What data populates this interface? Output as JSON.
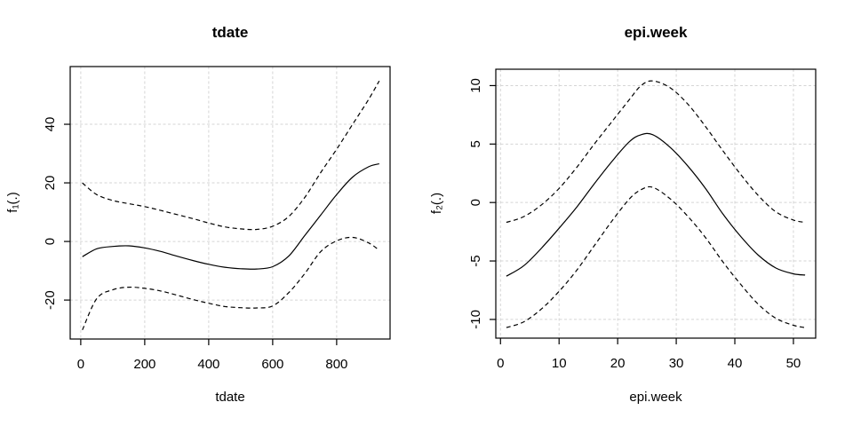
{
  "window": {
    "background": "#ffffff"
  },
  "colors": {
    "curve": "#000000",
    "grid": "#d5d5d5",
    "text": "#000000",
    "background": "#ffffff"
  },
  "chart_data": [
    {
      "panel": "left",
      "type": "line",
      "title": "tdate",
      "xlabel": "tdate",
      "ylabel": "f₁(.)",
      "xlim": [
        -33,
        967
      ],
      "ylim": [
        -33.3,
        59.7
      ],
      "xticks": [
        0,
        200,
        400,
        600,
        800
      ],
      "yticks": [
        -20,
        0,
        20,
        40
      ],
      "grid": true,
      "legend": null,
      "series": [
        {
          "name": "estimate",
          "line_style": "solid",
          "x": [
            5,
            50,
            100,
            150,
            200,
            250,
            300,
            350,
            400,
            450,
            500,
            550,
            600,
            650,
            700,
            750,
            800,
            850,
            900,
            933
          ],
          "y": [
            -5.2,
            -2.5,
            -1.7,
            -1.5,
            -2.2,
            -3.4,
            -5.0,
            -6.5,
            -7.8,
            -8.8,
            -9.3,
            -9.4,
            -8.6,
            -5.0,
            2.0,
            9.0,
            16.0,
            22.0,
            25.5,
            26.5
          ]
        },
        {
          "name": "upper_ci",
          "line_style": "dashed",
          "x": [
            5,
            50,
            100,
            150,
            200,
            250,
            300,
            350,
            400,
            450,
            500,
            550,
            600,
            650,
            700,
            750,
            800,
            850,
            900,
            933
          ],
          "y": [
            20.0,
            16.0,
            14.0,
            12.9,
            11.9,
            10.6,
            9.2,
            7.8,
            6.3,
            5.0,
            4.3,
            4.1,
            5.2,
            8.5,
            15.0,
            23.5,
            31.5,
            40.0,
            48.5,
            54.8
          ]
        },
        {
          "name": "lower_ci",
          "line_style": "dashed",
          "x": [
            5,
            50,
            100,
            150,
            200,
            250,
            300,
            350,
            400,
            450,
            500,
            550,
            600,
            650,
            700,
            750,
            800,
            850,
            900,
            933
          ],
          "y": [
            -30.2,
            -19.5,
            -16.5,
            -15.6,
            -16.0,
            -16.9,
            -18.3,
            -19.8,
            -21.1,
            -22.2,
            -22.6,
            -22.7,
            -22.0,
            -17.5,
            -11.0,
            -3.5,
            0.2,
            1.4,
            -0.5,
            -3.0
          ]
        }
      ]
    },
    {
      "panel": "right",
      "type": "line",
      "title": "epi.week",
      "xlabel": "epi.week",
      "ylabel": "f₂(.)",
      "xlim": [
        -0.8,
        53.8
      ],
      "ylim": [
        -11.6,
        11.4
      ],
      "xticks": [
        0,
        10,
        20,
        30,
        40,
        50
      ],
      "yticks": [
        -10,
        -5,
        0,
        5,
        10
      ],
      "grid": true,
      "legend": null,
      "series": [
        {
          "name": "estimate",
          "line_style": "solid",
          "x": [
            1,
            4,
            7,
            10,
            13,
            16,
            19,
            22,
            24,
            26,
            29,
            32,
            35,
            38,
            41,
            44,
            47,
            50,
            52
          ],
          "y": [
            -6.3,
            -5.4,
            -3.9,
            -2.2,
            -0.4,
            1.6,
            3.5,
            5.2,
            5.8,
            5.8,
            4.7,
            3.1,
            1.2,
            -1.0,
            -2.9,
            -4.5,
            -5.6,
            -6.1,
            -6.2
          ]
        },
        {
          "name": "upper_ci",
          "line_style": "dashed",
          "x": [
            1,
            4,
            7,
            10,
            13,
            16,
            19,
            22,
            24,
            26,
            29,
            32,
            35,
            38,
            41,
            44,
            47,
            50,
            52
          ],
          "y": [
            -1.7,
            -1.2,
            -0.2,
            1.2,
            3.0,
            5.0,
            6.9,
            8.8,
            10.0,
            10.4,
            9.8,
            8.4,
            6.5,
            4.4,
            2.4,
            0.6,
            -0.8,
            -1.5,
            -1.7
          ]
        },
        {
          "name": "lower_ci",
          "line_style": "dashed",
          "x": [
            1,
            4,
            7,
            10,
            13,
            16,
            19,
            22,
            24,
            26,
            29,
            32,
            35,
            38,
            41,
            44,
            47,
            50,
            52
          ],
          "y": [
            -10.7,
            -10.2,
            -9.1,
            -7.6,
            -5.8,
            -3.7,
            -1.6,
            0.3,
            1.1,
            1.3,
            0.3,
            -1.2,
            -3.0,
            -5.1,
            -7.0,
            -8.7,
            -9.9,
            -10.5,
            -10.7
          ]
        }
      ]
    }
  ]
}
